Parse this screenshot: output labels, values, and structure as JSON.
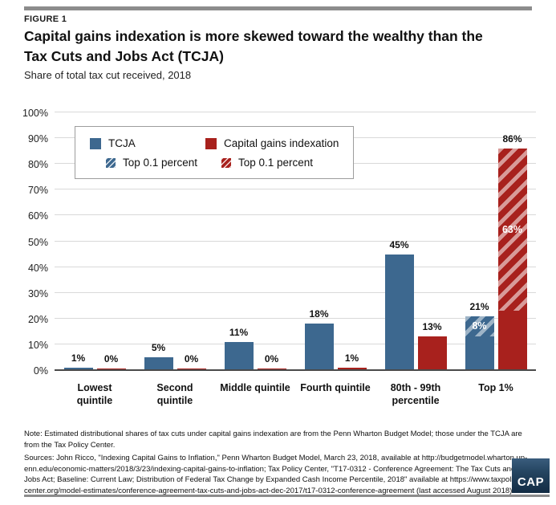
{
  "header": {
    "figure_label": "FIGURE 1",
    "title_line1": "Capital gains indexation is more skewed toward the wealthy than the",
    "title_line2": "Tax Cuts and Jobs Act (TCJA)",
    "subtitle": "Share of total tax cut received, 2018"
  },
  "legend": {
    "tcja": "TCJA",
    "cgi": "Capital gains indexation",
    "tcja_top": "Top 0.1 percent",
    "cgi_top": "Top 0.1 percent"
  },
  "colors": {
    "tcja_blue": "#3d688f",
    "cgi_red": "#a8211d",
    "gridline": "#d9d9d9",
    "axis_line": "#4a4a4a",
    "logo_navy": "#16324c"
  },
  "chart_data": {
    "type": "bar",
    "categories": [
      "Lowest quintile",
      "Second quintile",
      "Middle quintile",
      "Fourth quintile",
      "80th - 99th percentile",
      "Top 1%"
    ],
    "series": [
      {
        "name": "TCJA",
        "color": "#3d688f",
        "values": [
          1,
          5,
          11,
          18,
          45,
          21
        ]
      },
      {
        "name": "Capital gains indexation",
        "color": "#a8211d",
        "values": [
          0,
          0,
          0,
          1,
          13,
          86
        ]
      }
    ],
    "top_01_percent_overlays": [
      {
        "series": "TCJA",
        "category": "Top 1%",
        "value": 8,
        "style": "hatched"
      },
      {
        "series": "Capital gains indexation",
        "category": "Top 1%",
        "value": 63,
        "style": "hatched"
      }
    ],
    "ylim": [
      0,
      100
    ],
    "ytick_step": 10,
    "ytick_labels": [
      "0%",
      "10%",
      "20%",
      "30%",
      "40%",
      "50%",
      "60%",
      "70%",
      "80%",
      "90%",
      "100%"
    ],
    "grid": true,
    "legend_position": "top-left"
  },
  "bar_labels": {
    "tcja": [
      "1%",
      "5%",
      "11%",
      "18%",
      "45%",
      "21%"
    ],
    "cgi": [
      "0%",
      "0%",
      "0%",
      "1%",
      "13%",
      "86%"
    ],
    "top01_tcja": "8%",
    "top01_cgi": "63%"
  },
  "footer": {
    "note_lines": [
      "Note: Estimated distributional shares of tax cuts under capital gains indexation are from the Penn Wharton Budget Model; those under the TCJA are",
      "from the Tax Policy Center."
    ],
    "source_lines": [
      "Sources: John Ricco, \"Indexing Capital Gains to Inflation,\" Penn Wharton Budget Model, March 23, 2018, available at http://budgetmodel.wharton.up-",
      "enn.edu/economic-matters/2018/3/23/indexing-capital-gains-to-inflation; Tax Policy Center, \"T17-0312 - Conference Agreement: The Tax Cuts and",
      "Jobs Act; Baseline: Current Law; Distribution of Federal Tax Change by Expanded Cash Income Percentile, 2018\" available at https://www.taxpolicy-",
      "center.org/model-estimates/conference-agreement-tax-cuts-and-jobs-act-dec-2017/t17-0312-conference-agreement (last accessed August 2018)"
    ],
    "logo_text": "CAP"
  }
}
